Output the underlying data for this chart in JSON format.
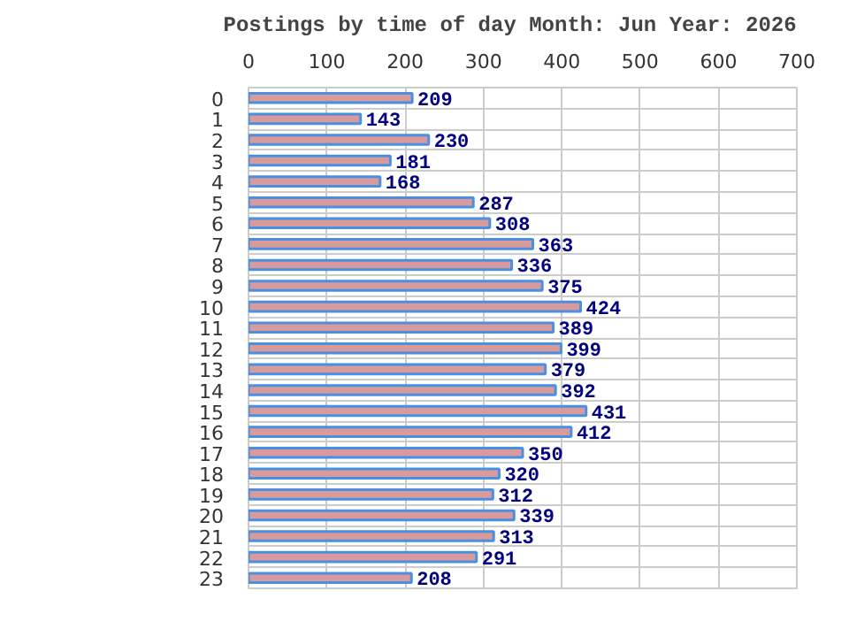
{
  "chart_data": {
    "type": "bar",
    "orientation": "horizontal",
    "title": "Postings by time of day Month: Jun   Year: 2026",
    "categories": [
      "0",
      "1",
      "2",
      "3",
      "4",
      "5",
      "6",
      "7",
      "8",
      "9",
      "10",
      "11",
      "12",
      "13",
      "14",
      "15",
      "16",
      "17",
      "18",
      "19",
      "20",
      "21",
      "22",
      "23"
    ],
    "values": [
      209,
      143,
      230,
      181,
      168,
      287,
      308,
      363,
      336,
      375,
      424,
      389,
      399,
      379,
      392,
      431,
      412,
      350,
      320,
      312,
      339,
      313,
      291,
      208
    ],
    "color": "#d89a9a",
    "xlim": [
      0,
      700
    ],
    "xticks": [
      0,
      100,
      200,
      300,
      400,
      500,
      600,
      700
    ],
    "grid": true,
    "data_labels": true
  }
}
